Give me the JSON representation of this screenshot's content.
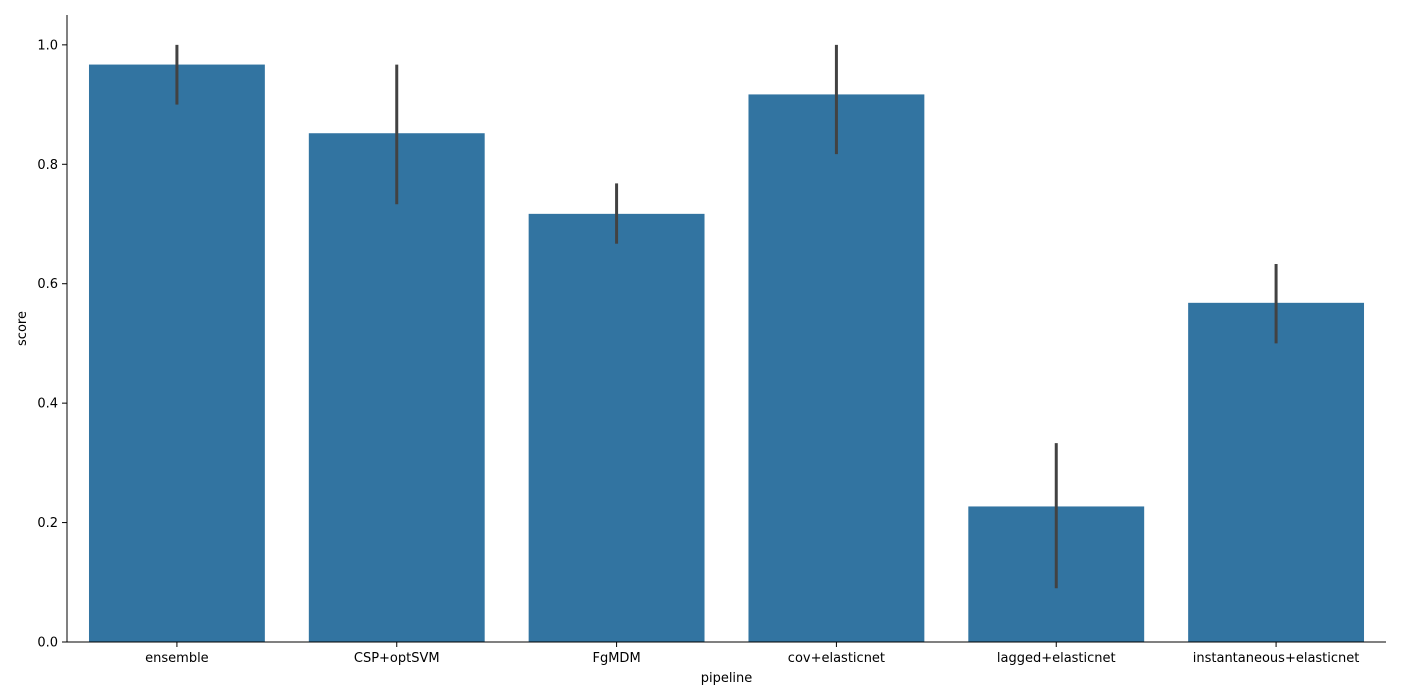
{
  "chart_data": {
    "type": "bar",
    "xlabel": "pipeline",
    "ylabel": "score",
    "ylim": [
      0,
      1.05
    ],
    "yticks": [
      0.0,
      0.2,
      0.4,
      0.6,
      0.8,
      1.0
    ],
    "ytick_labels": [
      "0.0",
      "0.2",
      "0.4",
      "0.6",
      "0.8",
      "1.0"
    ],
    "categories": [
      "ensemble",
      "CSP+optSVM",
      "FgMDM",
      "cov+elasticnet",
      "lagged+elasticnet",
      "instantaneous+elasticnet"
    ],
    "values": [
      0.967,
      0.852,
      0.717,
      0.917,
      0.227,
      0.568
    ],
    "error_low": [
      0.9,
      0.733,
      0.667,
      0.817,
      0.09,
      0.5
    ],
    "error_high": [
      1.0,
      0.967,
      0.768,
      1.0,
      0.333,
      0.633
    ],
    "bar_color": "#3274a1",
    "error_color": "#424242",
    "grid": false,
    "spines": "left-bottom"
  }
}
